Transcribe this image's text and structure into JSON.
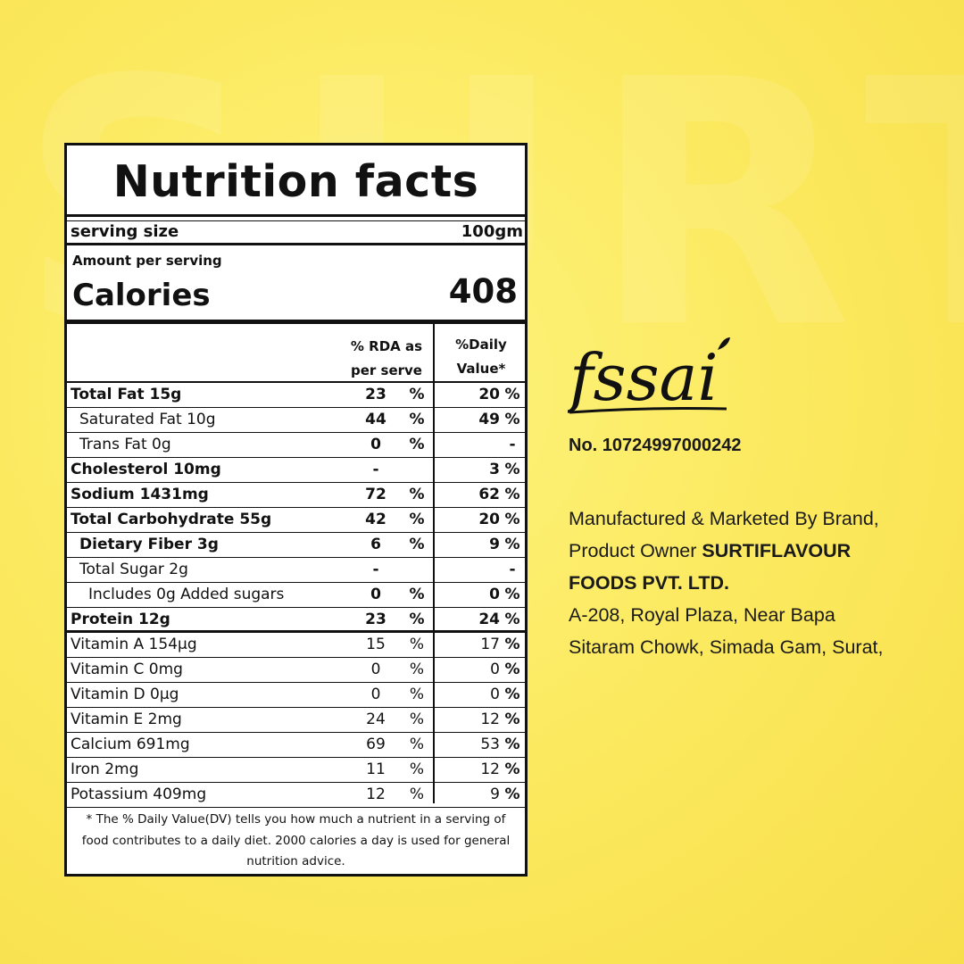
{
  "label": {
    "title": "Nutrition facts",
    "serving_size_label": "serving size",
    "serving_size_value": "100gm",
    "amount_per_serving": "Amount per serving",
    "calories_label": "Calories",
    "calories_value": "408",
    "col1_header_line1": "% RDA as",
    "col1_header_line2": "per serve",
    "col2_header_line1": "%Daily",
    "col2_header_line2": "Value*",
    "rows": [
      {
        "name": "Total Fat 15g",
        "rda": "23",
        "rda_pct": "%",
        "dv": "20",
        "dv_pct": "%"
      },
      {
        "name": "Saturated Fat 10g",
        "rda": "44",
        "rda_pct": "%",
        "dv": "49",
        "dv_pct": "%"
      },
      {
        "name": "Trans Fat 0g",
        "rda": "0",
        "rda_pct": "%",
        "dv": "",
        "dv_pct": "-"
      },
      {
        "name": "Cholesterol 10mg",
        "rda": "-",
        "rda_pct": "",
        "dv": "3",
        "dv_pct": "%"
      },
      {
        "name": "Sodium 1431mg",
        "rda": "72",
        "rda_pct": "%",
        "dv": "62",
        "dv_pct": "%"
      },
      {
        "name": "Total Carbohydrate 55g",
        "rda": "42",
        "rda_pct": "%",
        "dv": "20",
        "dv_pct": "%"
      },
      {
        "name": "Dietary Fiber 3g",
        "rda": "6",
        "rda_pct": "%",
        "dv": "9",
        "dv_pct": "%"
      },
      {
        "name": "Total Sugar 2g",
        "rda": "-",
        "rda_pct": "",
        "dv": "",
        "dv_pct": "-"
      },
      {
        "name": "Includes 0g Added sugars",
        "rda": "0",
        "rda_pct": "%",
        "dv": "0",
        "dv_pct": "%"
      },
      {
        "name": "Protein 12g",
        "rda": "23",
        "rda_pct": "%",
        "dv": "24",
        "dv_pct": "%"
      },
      {
        "name": "Vitamin A 154µg",
        "rda": "15",
        "rda_pct": "%",
        "dv": "17",
        "dv_pct": "%"
      },
      {
        "name": "Vitamin C  0mg",
        "rda": "0",
        "rda_pct": "%",
        "dv": "0",
        "dv_pct": "%"
      },
      {
        "name": "Vitamin D 0µg",
        "rda": "0",
        "rda_pct": "%",
        "dv": "0",
        "dv_pct": "%"
      },
      {
        "name": "Vitamin E 2mg",
        "rda": "24",
        "rda_pct": "%",
        "dv": "12",
        "dv_pct": "%"
      },
      {
        "name": "Calcium 691mg",
        "rda": "69",
        "rda_pct": "%",
        "dv": "53",
        "dv_pct": "%"
      },
      {
        "name": "Iron 2mg",
        "rda": "11",
        "rda_pct": "%",
        "dv": "12",
        "dv_pct": "%"
      },
      {
        "name": "Potassium 409mg",
        "rda": "12",
        "rda_pct": "%",
        "dv": "9",
        "dv_pct": "%"
      }
    ],
    "footnote": "* The %  Daily Value(DV) tells you how much a nutrient in a serving of food contributes to a daily diet. 2000 calories a day is used for general nutrition advice."
  },
  "fssai": {
    "logo_text": "fssai",
    "license_no": "No. 10724997000242"
  },
  "manufacturer": {
    "line1": "Manufactured & Marketed By Brand,",
    "line2_prefix": "Product Owner ",
    "company_part1": "SURTIFLAVOUR",
    "company_part2": "FOODS PVT. LTD.",
    "address_line1": "A-208, Royal Plaza, Near Bapa",
    "address_line2": "Sitaram Chowk, Simada Gam, Surat,"
  },
  "colors": {
    "background": "#fbe85c",
    "ink": "#111111"
  }
}
